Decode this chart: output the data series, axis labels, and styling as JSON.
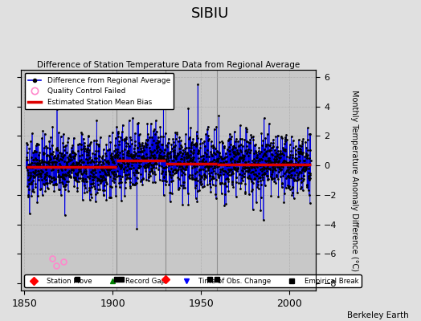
{
  "title": "SIBIU",
  "subtitle": "Difference of Station Temperature Data from Regional Average",
  "ylabel": "Monthly Temperature Anomaly Difference (°C)",
  "xlim": [
    1848,
    2015
  ],
  "ylim": [
    -8.5,
    6.5
  ],
  "yticks": [
    -8,
    -6,
    -4,
    -2,
    0,
    2,
    4,
    6
  ],
  "xticks": [
    1850,
    1900,
    1950,
    2000
  ],
  "seed": 42,
  "start_year": 1851,
  "end_year": 2012,
  "background_color": "#e0e0e0",
  "plot_bg_color": "#c8c8c8",
  "blue_line_color": "#0000dd",
  "blue_fill_color": "#7777ff",
  "red_line_color": "#dd0000",
  "dot_color": "#000000",
  "qc_fail_color": "#ff88cc",
  "grid_color": "#aaaaaa",
  "bias_segments": [
    {
      "start": 1851,
      "end": 1902,
      "bias": -0.1
    },
    {
      "start": 1902,
      "end": 1930,
      "bias": 0.35
    },
    {
      "start": 1930,
      "end": 1959,
      "bias": 0.1
    },
    {
      "start": 1959,
      "end": 2012,
      "bias": 0.05
    }
  ],
  "break_lines": [
    1902,
    1930,
    1959
  ],
  "station_move_years": [
    1930
  ],
  "empirical_break_years": [
    1880,
    1902,
    1905,
    1955,
    1959
  ],
  "obs_change_years": [],
  "qc_fail_times": [
    1865.5,
    1868.0,
    1872.0
  ],
  "qc_fail_values": [
    -6.3,
    -6.8,
    -6.5
  ],
  "watermark": "Berkeley Earth",
  "figsize": [
    5.24,
    4.0
  ],
  "dpi": 100
}
